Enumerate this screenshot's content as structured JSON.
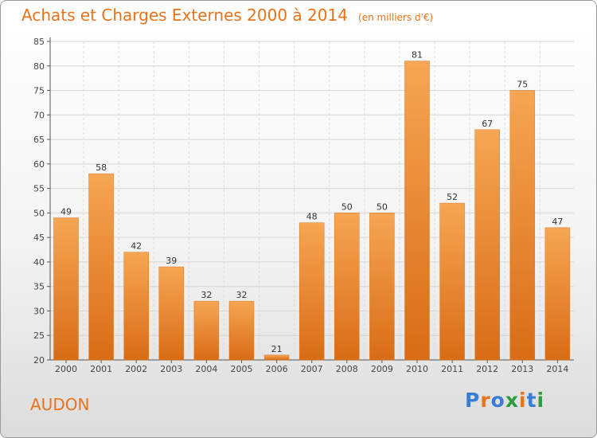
{
  "title": "Achats et Charges Externes 2000 à 2014",
  "unit": "(en milliers d'€)",
  "city": "AUDON",
  "logo": {
    "text": "Proxiti",
    "colors": [
      "#3a7bd5",
      "#e8731a",
      "#3a7bd5",
      "#2e9c3a",
      "#e8731a",
      "#3a7bd5",
      "#2e9c3a"
    ]
  },
  "colors": {
    "accent": "#e8731a",
    "bar_light": "#f6a654",
    "bar_dark": "#d96c16"
  },
  "chart_data": {
    "type": "bar",
    "title": "Achats et Charges Externes 2000 à 2014",
    "subtitle": "(en milliers d'€)",
    "xlabel": "",
    "ylabel": "",
    "categories": [
      "2000",
      "2001",
      "2002",
      "2003",
      "2004",
      "2005",
      "2006",
      "2007",
      "2008",
      "2009",
      "2010",
      "2011",
      "2012",
      "2013",
      "2014"
    ],
    "values": [
      49,
      58,
      42,
      39,
      32,
      32,
      21,
      48,
      50,
      50,
      81,
      52,
      67,
      75,
      47
    ],
    "ylim": [
      20,
      85
    ],
    "yticks": [
      20,
      25,
      30,
      35,
      40,
      45,
      50,
      55,
      60,
      65,
      70,
      75,
      80,
      85
    ],
    "grid": true,
    "legend": "none"
  }
}
